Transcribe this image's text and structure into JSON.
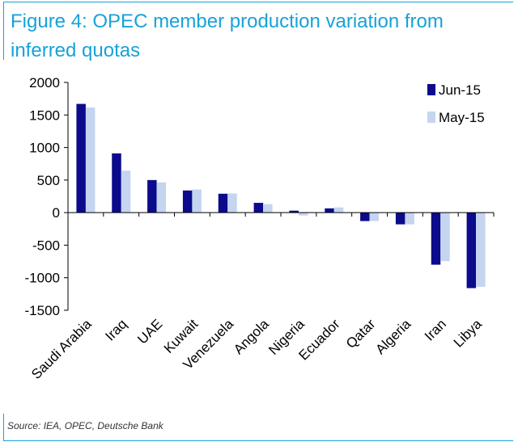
{
  "figure": {
    "title": "Figure 4: OPEC member production variation from inferred quotas",
    "source": "Source: IEA, OPEC, Deutsche Bank"
  },
  "chart_data": {
    "type": "bar",
    "title": "Figure 4: OPEC member production variation from inferred quotas",
    "categories": [
      "Saudi Arabia",
      "Iraq",
      "UAE",
      "Kuwait",
      "Venezuela",
      "Angola",
      "Nigeria",
      "Ecuador",
      "Qatar",
      "Algeria",
      "Iran",
      "Libya"
    ],
    "series": [
      {
        "name": "Jun-15",
        "color": "#0b0b8c",
        "values": [
          1670,
          910,
          500,
          340,
          290,
          150,
          30,
          65,
          -130,
          -180,
          -800,
          -1160
        ]
      },
      {
        "name": "May-15",
        "color": "#c5d5f0",
        "values": [
          1615,
          645,
          465,
          355,
          295,
          130,
          -45,
          80,
          -130,
          -180,
          -745,
          -1140
        ]
      }
    ],
    "ylim": [
      -1500,
      2000
    ],
    "yticks": [
      2000,
      1500,
      1000,
      500,
      0,
      -500,
      -1000,
      -1500
    ],
    "legend_position": "top-right",
    "grid": false
  }
}
